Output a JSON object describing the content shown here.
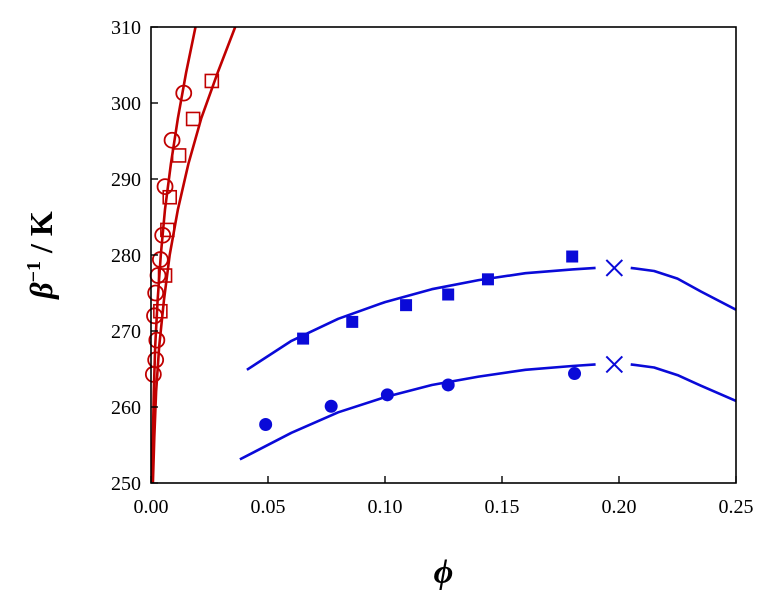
{
  "chart_data": {
    "type": "scatter",
    "title": "",
    "xlabel": "ϕ",
    "ylabel_symbol": "β",
    "ylabel_exponent": "−1",
    "ylabel_unit": " / K",
    "xlim": [
      0,
      0.25
    ],
    "ylim": [
      250,
      310
    ],
    "xticks": [
      "0.00",
      "0.05",
      "0.10",
      "0.15",
      "0.20",
      "0.25"
    ],
    "yticks": [
      "250",
      "260",
      "270",
      "280",
      "290",
      "300",
      "310"
    ],
    "grid": false,
    "legend": "none",
    "colors": {
      "red": "#c00000",
      "blue": "#0a0ad8"
    },
    "series": [
      {
        "marker": "open-circle",
        "color": "red",
        "points": [
          [
            0.001,
            264.3
          ],
          [
            0.002,
            266.2
          ],
          [
            0.0025,
            268.8
          ],
          [
            0.0015,
            272.0
          ],
          [
            0.002,
            275.0
          ],
          [
            0.003,
            277.3
          ],
          [
            0.004,
            279.4
          ],
          [
            0.005,
            282.6
          ],
          [
            0.006,
            289.0
          ],
          [
            0.009,
            295.1
          ],
          [
            0.014,
            301.3
          ]
        ]
      },
      {
        "marker": "open-square",
        "color": "red",
        "points": [
          [
            0.004,
            272.6
          ],
          [
            0.006,
            277.3
          ],
          [
            0.007,
            283.3
          ],
          [
            0.008,
            287.6
          ],
          [
            0.012,
            293.1
          ],
          [
            0.018,
            297.9
          ],
          [
            0.026,
            302.9
          ]
        ]
      },
      {
        "marker": "filled-square",
        "color": "blue",
        "points": [
          [
            0.065,
            269.0
          ],
          [
            0.086,
            271.2
          ],
          [
            0.109,
            273.4
          ],
          [
            0.127,
            274.8
          ],
          [
            0.144,
            276.8
          ],
          [
            0.18,
            279.8
          ]
        ]
      },
      {
        "marker": "filled-circle",
        "color": "blue",
        "points": [
          [
            0.049,
            257.7
          ],
          [
            0.077,
            260.1
          ],
          [
            0.101,
            261.6
          ],
          [
            0.127,
            262.9
          ],
          [
            0.181,
            264.4
          ]
        ]
      },
      {
        "marker": "cross",
        "color": "blue",
        "points": [
          [
            0.198,
            278.3
          ],
          [
            0.198,
            265.6
          ]
        ]
      }
    ],
    "curves": [
      {
        "color": "red",
        "points": [
          [
            0.0005,
            250
          ],
          [
            0.0008,
            256
          ],
          [
            0.0012,
            262
          ],
          [
            0.0018,
            268
          ],
          [
            0.0028,
            274
          ],
          [
            0.0042,
            280
          ],
          [
            0.006,
            286
          ],
          [
            0.0085,
            292
          ],
          [
            0.0115,
            298
          ],
          [
            0.015,
            304
          ],
          [
            0.019,
            310
          ]
        ]
      },
      {
        "color": "red",
        "points": [
          [
            0.0008,
            250
          ],
          [
            0.0014,
            256
          ],
          [
            0.0022,
            262
          ],
          [
            0.0035,
            268
          ],
          [
            0.0055,
            274
          ],
          [
            0.008,
            280
          ],
          [
            0.0115,
            286
          ],
          [
            0.016,
            292
          ],
          [
            0.0215,
            298
          ],
          [
            0.0285,
            304
          ],
          [
            0.036,
            310
          ]
        ]
      },
      {
        "color": "blue",
        "points": [
          [
            0.041,
            264.9
          ],
          [
            0.06,
            268.7
          ],
          [
            0.08,
            271.6
          ],
          [
            0.1,
            273.8
          ],
          [
            0.12,
            275.5
          ],
          [
            0.14,
            276.7
          ],
          [
            0.16,
            277.6
          ],
          [
            0.18,
            278.1
          ],
          [
            0.19,
            278.3
          ]
        ]
      },
      {
        "color": "blue",
        "points": [
          [
            0.205,
            278.3
          ],
          [
            0.215,
            277.9
          ],
          [
            0.225,
            276.9
          ],
          [
            0.235,
            275.2
          ],
          [
            0.25,
            272.8
          ]
        ]
      },
      {
        "color": "blue",
        "points": [
          [
            0.038,
            253.1
          ],
          [
            0.06,
            256.6
          ],
          [
            0.08,
            259.3
          ],
          [
            0.1,
            261.3
          ],
          [
            0.12,
            262.9
          ],
          [
            0.14,
            264.0
          ],
          [
            0.16,
            264.9
          ],
          [
            0.18,
            265.4
          ],
          [
            0.19,
            265.6
          ]
        ]
      },
      {
        "color": "blue",
        "points": [
          [
            0.205,
            265.6
          ],
          [
            0.215,
            265.2
          ],
          [
            0.225,
            264.2
          ],
          [
            0.235,
            262.8
          ],
          [
            0.25,
            260.8
          ]
        ]
      }
    ]
  }
}
